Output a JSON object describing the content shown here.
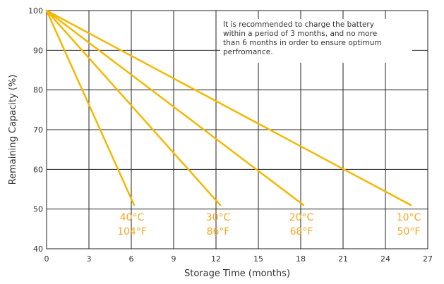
{
  "chart_data": {
    "type": "line",
    "title": "",
    "xlabel": "Storage Time (months)",
    "ylabel": "Remaining Capacity (%)",
    "xlim": [
      0,
      27
    ],
    "ylim": [
      40,
      100
    ],
    "xticks": [
      0,
      3,
      6,
      9,
      12,
      15,
      18,
      21,
      24,
      27
    ],
    "yticks": [
      40,
      50,
      60,
      70,
      80,
      90,
      100
    ],
    "grid": true,
    "line_color": "#f5b800",
    "label_color": "#f5a623",
    "series": [
      {
        "name": "40°C / 104°F",
        "x": [
          0,
          6.2
        ],
        "y": [
          100,
          51
        ]
      },
      {
        "name": "30°C / 86°F",
        "x": [
          0,
          12.3
        ],
        "y": [
          100,
          51
        ]
      },
      {
        "name": "20°C / 68°F",
        "x": [
          0,
          18.2
        ],
        "y": [
          100,
          51
        ]
      },
      {
        "name": "10°C / 50°F",
        "x": [
          0,
          25.8
        ],
        "y": [
          100,
          51
        ]
      }
    ],
    "series_labels": [
      {
        "celsius": "40°C",
        "fahrenheit": "104°F"
      },
      {
        "celsius": "30°C",
        "fahrenheit": "86°F"
      },
      {
        "celsius": "20°C",
        "fahrenheit": "68°F"
      },
      {
        "celsius": "10°C",
        "fahrenheit": "50°F"
      }
    ],
    "annotation": [
      "It is recommended to charge the battery",
      "within a period of 3 months, and no more",
      "than 6 months in order to ensure optimum",
      "perfromance."
    ]
  }
}
